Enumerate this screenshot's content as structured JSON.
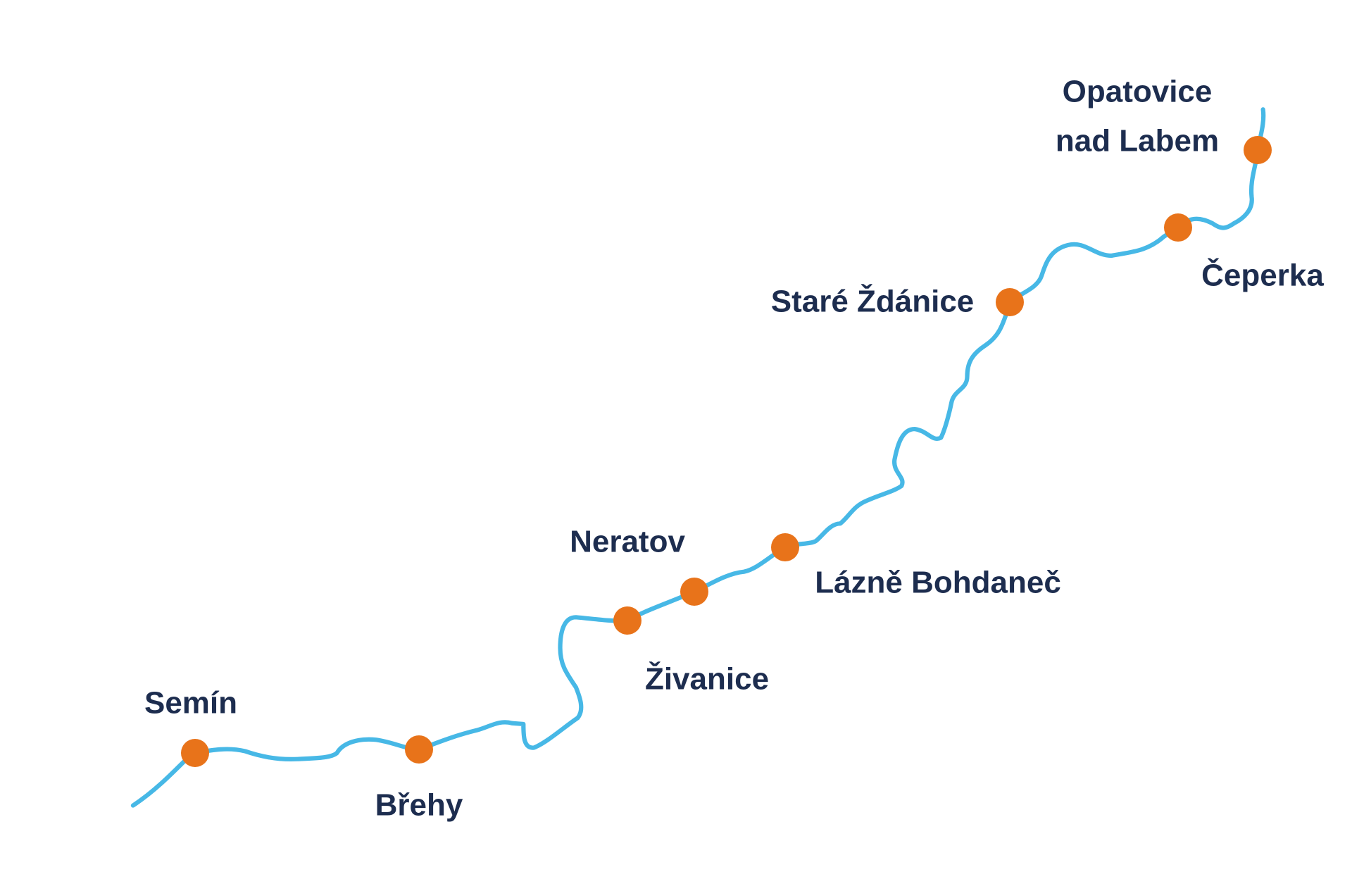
{
  "places": [
    {
      "lines": [
        "Semín"
      ]
    },
    {
      "lines": [
        "Břehy"
      ]
    },
    {
      "lines": [
        "Živanice"
      ]
    },
    {
      "lines": [
        "Neratov"
      ]
    },
    {
      "lines": [
        "Lázně Bohdaneč"
      ]
    },
    {
      "lines": [
        "Staré Ždánice"
      ]
    },
    {
      "lines": [
        "Čeperka"
      ]
    },
    {
      "lines": [
        "Opatovice",
        "nad Labem"
      ]
    }
  ]
}
